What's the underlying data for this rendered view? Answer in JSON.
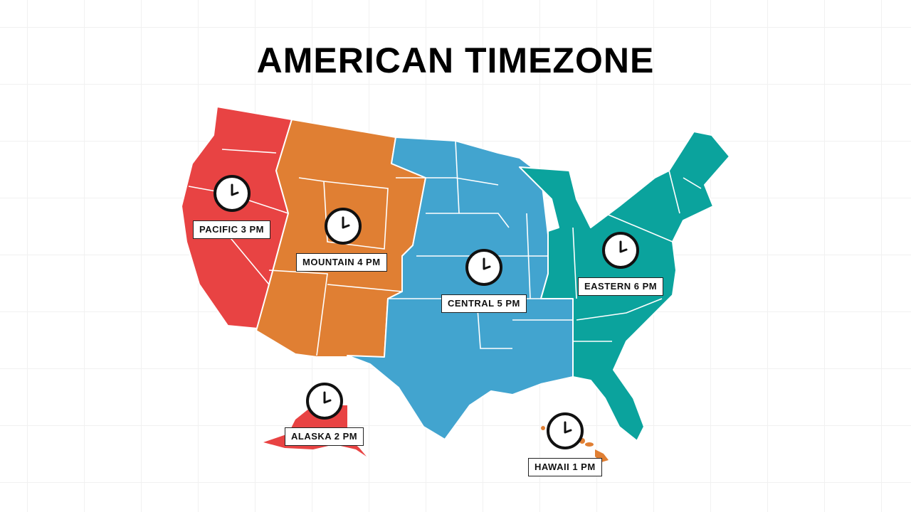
{
  "title": "AMERICAN TIMEZONE",
  "colors": {
    "pacific": "#E84343",
    "mountain": "#E07F33",
    "central": "#42A4CF",
    "eastern": "#0BA39D",
    "border": "#ffffff",
    "clock": "#111111"
  },
  "zones": [
    {
      "id": "pacific",
      "label": "PACIFIC 3 PM",
      "icon": "clock-icon"
    },
    {
      "id": "mountain",
      "label": "MOUNTAIN  4 PM",
      "icon": "clock-icon"
    },
    {
      "id": "central",
      "label": "CENTRAL 5 PM",
      "icon": "clock-icon"
    },
    {
      "id": "eastern",
      "label": "EASTERN 6 PM",
      "icon": "clock-icon"
    },
    {
      "id": "alaska",
      "label": "ALASKA 2 PM",
      "icon": "clock-icon"
    },
    {
      "id": "hawaii",
      "label": "HAWAII 1 PM",
      "icon": "clock-icon"
    }
  ]
}
